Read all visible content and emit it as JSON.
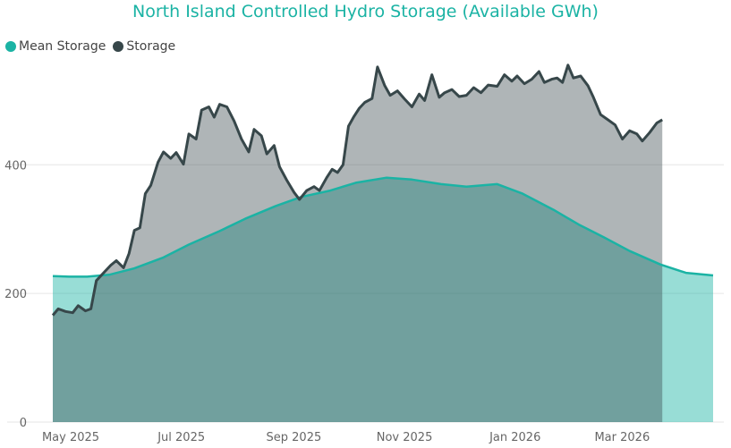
{
  "chart_data": {
    "type": "area",
    "title": "North Island Controlled Hydro Storage (Available GWh)",
    "xlabel": "",
    "ylabel": "",
    "ylim": [
      0,
      570
    ],
    "yticks": [
      0,
      200,
      400
    ],
    "grid": true,
    "legend_position": "top-left",
    "x_ticks": [
      "May 2025",
      "Jul 2025",
      "Sep 2025",
      "Nov 2025",
      "Jan 2026",
      "Mar 2026"
    ],
    "x_range": [
      "2025-05-01",
      "2026-04-30"
    ],
    "series": [
      {
        "name": "Mean Storage",
        "color": "#1bb3a4",
        "points": [
          [
            "2025-05-01",
            227
          ],
          [
            "2025-05-10",
            226
          ],
          [
            "2025-05-20",
            226
          ],
          [
            "2025-06-01",
            229
          ],
          [
            "2025-06-15",
            239
          ],
          [
            "2025-07-01",
            256
          ],
          [
            "2025-07-15",
            276
          ],
          [
            "2025-08-01",
            297
          ],
          [
            "2025-08-15",
            316
          ],
          [
            "2025-09-01",
            336
          ],
          [
            "2025-09-15",
            350
          ],
          [
            "2025-10-01",
            360
          ],
          [
            "2025-10-15",
            372
          ],
          [
            "2025-11-01",
            380
          ],
          [
            "2025-11-15",
            377
          ],
          [
            "2025-12-01",
            370
          ],
          [
            "2025-12-15",
            366
          ],
          [
            "2026-01-01",
            370
          ],
          [
            "2026-01-15",
            355
          ],
          [
            "2026-02-01",
            330
          ],
          [
            "2026-02-15",
            307
          ],
          [
            "2026-03-01",
            287
          ],
          [
            "2026-03-15",
            266
          ],
          [
            "2026-04-01",
            245
          ],
          [
            "2026-04-15",
            232
          ],
          [
            "2026-04-30",
            228
          ]
        ]
      },
      {
        "name": "Storage",
        "color": "#37474a",
        "points": [
          [
            "2025-05-01",
            166
          ],
          [
            "2025-05-04",
            176
          ],
          [
            "2025-05-08",
            172
          ],
          [
            "2025-05-12",
            170
          ],
          [
            "2025-05-15",
            181
          ],
          [
            "2025-05-19",
            173
          ],
          [
            "2025-05-22",
            176
          ],
          [
            "2025-05-25",
            220
          ],
          [
            "2025-05-29",
            232
          ],
          [
            "2025-06-02",
            244
          ],
          [
            "2025-06-05",
            251
          ],
          [
            "2025-06-09",
            240
          ],
          [
            "2025-06-12",
            262
          ],
          [
            "2025-06-15",
            298
          ],
          [
            "2025-06-18",
            302
          ],
          [
            "2025-06-21",
            355
          ],
          [
            "2025-06-24",
            368
          ],
          [
            "2025-06-28",
            404
          ],
          [
            "2025-07-01",
            420
          ],
          [
            "2025-07-05",
            410
          ],
          [
            "2025-07-08",
            419
          ],
          [
            "2025-07-12",
            401
          ],
          [
            "2025-07-15",
            448
          ],
          [
            "2025-07-19",
            440
          ],
          [
            "2025-07-22",
            485
          ],
          [
            "2025-07-26",
            490
          ],
          [
            "2025-07-29",
            474
          ],
          [
            "2025-08-01",
            494
          ],
          [
            "2025-08-05",
            490
          ],
          [
            "2025-08-09",
            468
          ],
          [
            "2025-08-13",
            440
          ],
          [
            "2025-08-17",
            420
          ],
          [
            "2025-08-20",
            455
          ],
          [
            "2025-08-24",
            445
          ],
          [
            "2025-08-27",
            417
          ],
          [
            "2025-08-31",
            430
          ],
          [
            "2025-09-03",
            397
          ],
          [
            "2025-09-07",
            376
          ],
          [
            "2025-09-11",
            357
          ],
          [
            "2025-09-14",
            346
          ],
          [
            "2025-09-18",
            360
          ],
          [
            "2025-09-22",
            366
          ],
          [
            "2025-09-25",
            360
          ],
          [
            "2025-09-29",
            380
          ],
          [
            "2025-10-02",
            393
          ],
          [
            "2025-10-05",
            388
          ],
          [
            "2025-10-08",
            400
          ],
          [
            "2025-10-11",
            460
          ],
          [
            "2025-10-14",
            475
          ],
          [
            "2025-10-17",
            488
          ],
          [
            "2025-10-20",
            497
          ],
          [
            "2025-10-24",
            503
          ],
          [
            "2025-10-27",
            552
          ],
          [
            "2025-10-31",
            523
          ],
          [
            "2025-11-03",
            508
          ],
          [
            "2025-11-07",
            515
          ],
          [
            "2025-11-11",
            502
          ],
          [
            "2025-11-15",
            490
          ],
          [
            "2025-11-19",
            510
          ],
          [
            "2025-11-22",
            500
          ],
          [
            "2025-11-26",
            540
          ],
          [
            "2025-11-30",
            505
          ],
          [
            "2025-12-03",
            512
          ],
          [
            "2025-12-07",
            517
          ],
          [
            "2025-12-11",
            506
          ],
          [
            "2025-12-15",
            508
          ],
          [
            "2025-12-19",
            520
          ],
          [
            "2025-12-23",
            512
          ],
          [
            "2025-12-27",
            524
          ],
          [
            "2026-01-01",
            522
          ],
          [
            "2026-01-05",
            540
          ],
          [
            "2026-01-09",
            530
          ],
          [
            "2026-01-12",
            538
          ],
          [
            "2026-01-16",
            526
          ],
          [
            "2026-01-20",
            533
          ],
          [
            "2026-01-24",
            545
          ],
          [
            "2026-01-27",
            528
          ],
          [
            "2026-01-31",
            533
          ],
          [
            "2026-02-03",
            535
          ],
          [
            "2026-02-06",
            528
          ],
          [
            "2026-02-09",
            555
          ],
          [
            "2026-02-12",
            535
          ],
          [
            "2026-02-16",
            538
          ],
          [
            "2026-02-20",
            523
          ],
          [
            "2026-02-23",
            505
          ],
          [
            "2026-02-27",
            478
          ],
          [
            "2026-03-03",
            470
          ],
          [
            "2026-03-07",
            462
          ],
          [
            "2026-03-11",
            440
          ],
          [
            "2026-03-15",
            453
          ],
          [
            "2026-03-19",
            448
          ],
          [
            "2026-03-22",
            437
          ],
          [
            "2026-03-26",
            450
          ],
          [
            "2026-03-30",
            465
          ],
          [
            "2026-04-02",
            470
          ]
        ]
      }
    ]
  }
}
